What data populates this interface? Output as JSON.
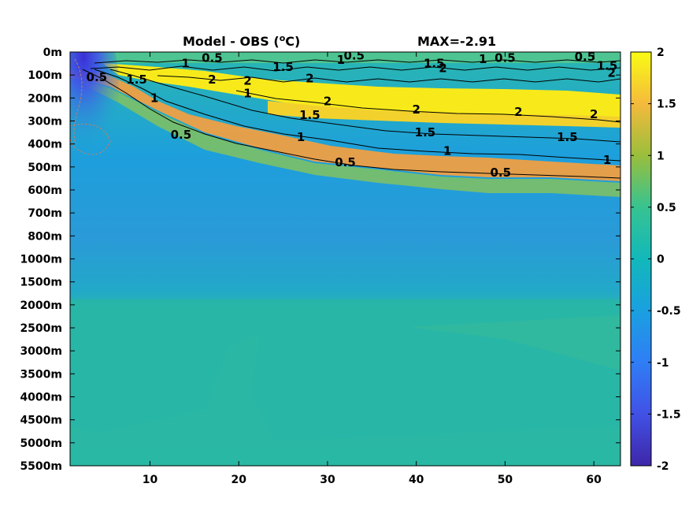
{
  "chart_data": {
    "type": "heatmap",
    "title": "Model - OBS (",
    "title_sup": "o",
    "title_tail": "C)",
    "max_label": "MAX=-2.91",
    "x_ticks": [
      10,
      20,
      30,
      40,
      50,
      60
    ],
    "x_range": [
      1,
      63
    ],
    "y_tick_labels": [
      "0m",
      "100m",
      "200m",
      "300m",
      "400m",
      "500m",
      "600m",
      "700m",
      "800m",
      "1000m",
      "1500m",
      "2000m",
      "2500m",
      "3000m",
      "3500m",
      "4000m",
      "4500m",
      "5000m",
      "5500m"
    ],
    "colorbar": {
      "range": [
        -2,
        2
      ],
      "ticks": [
        2,
        1.5,
        1,
        0.5,
        0,
        -0.5,
        -1,
        -1.5,
        -2
      ],
      "tick_labels": [
        "2",
        "1.5",
        "1",
        "0.5",
        "0",
        "-0.5",
        "-1",
        "-1.5",
        "-2"
      ]
    },
    "contour_labels": [
      {
        "text": "0.5",
        "x": 4.0,
        "depth": 1.1
      },
      {
        "text": "1",
        "x": 14.0,
        "depth": 0.5
      },
      {
        "text": "0.5",
        "x": 17.0,
        "depth": 0.25
      },
      {
        "text": "1.5",
        "x": 8.5,
        "depth": 1.2
      },
      {
        "text": "2",
        "x": 17.0,
        "depth": 1.2
      },
      {
        "text": "2",
        "x": 21.0,
        "depth": 1.25
      },
      {
        "text": "1",
        "x": 10.5,
        "depth": 2.0
      },
      {
        "text": "1.5",
        "x": 25.0,
        "depth": 0.65
      },
      {
        "text": "2",
        "x": 28.0,
        "depth": 1.15
      },
      {
        "text": "1",
        "x": 21.0,
        "depth": 1.8
      },
      {
        "text": "1",
        "x": 31.5,
        "depth": 0.35
      },
      {
        "text": "0.5",
        "x": 33.0,
        "depth": 0.15
      },
      {
        "text": "2",
        "x": 30.0,
        "depth": 2.15
      },
      {
        "text": "1.5",
        "x": 28.0,
        "depth": 2.75
      },
      {
        "text": "1",
        "x": 27.0,
        "depth": 3.7
      },
      {
        "text": "0.5",
        "x": 13.5,
        "depth": 3.6
      },
      {
        "text": "0.5",
        "x": 32.0,
        "depth": 4.8
      },
      {
        "text": "1.5",
        "x": 42.0,
        "depth": 0.5
      },
      {
        "text": "2",
        "x": 43.0,
        "depth": 0.7
      },
      {
        "text": "1",
        "x": 47.5,
        "depth": 0.3
      },
      {
        "text": "0.5",
        "x": 50.0,
        "depth": 0.25
      },
      {
        "text": "2",
        "x": 40.0,
        "depth": 2.5
      },
      {
        "text": "1.5",
        "x": 41.0,
        "depth": 3.5
      },
      {
        "text": "1",
        "x": 43.5,
        "depth": 4.3
      },
      {
        "text": "0.5",
        "x": 49.5,
        "depth": 5.25
      },
      {
        "text": "2",
        "x": 51.5,
        "depth": 2.6
      },
      {
        "text": "2",
        "x": 60.0,
        "depth": 2.7
      },
      {
        "text": "1.5",
        "x": 57.0,
        "depth": 3.7
      },
      {
        "text": "1",
        "x": 61.5,
        "depth": 4.7
      },
      {
        "text": "0.5",
        "x": 59.0,
        "depth": 0.2
      },
      {
        "text": "1.5",
        "x": 61.5,
        "depth": 0.6
      },
      {
        "text": "2",
        "x": 62.0,
        "depth": 0.9
      }
    ]
  },
  "colors": {
    "top_warm": "#f6e81c",
    "orange": "#f8b53a",
    "surface_green": "#5bc78a",
    "mid_teal": "#1db8b2",
    "deep_teal": "#2ab3a8",
    "cool_blue": "#2696dc",
    "cold_core": "#3c5cf0",
    "cold_deep": "#3d2fd8",
    "contour": "#000000",
    "neg_contour": "#c07a5a"
  }
}
